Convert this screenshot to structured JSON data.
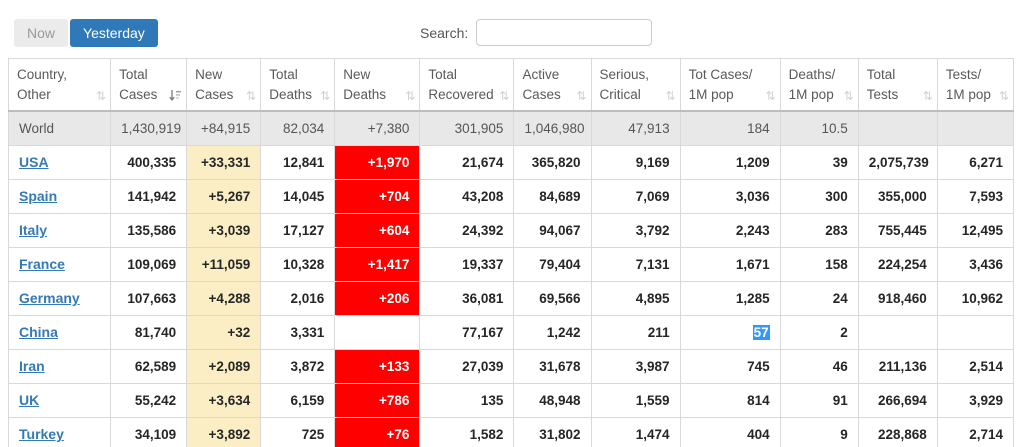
{
  "toolbar": {
    "now_label": "Now",
    "yesterday_label": "Yesterday",
    "search_label": "Search:",
    "search_value": ""
  },
  "colors": {
    "accent_blue": "#2f79b9",
    "link_blue": "#337ab7",
    "new_cases_yellow": "#fbeec5",
    "new_deaths_red": "#ff0000",
    "selection_blue": "#3297fd",
    "world_row_gray": "#e8e8e8"
  },
  "table": {
    "columns": [
      {
        "key": "country",
        "lines": [
          "Country,",
          "Other"
        ],
        "sort": "both"
      },
      {
        "key": "total_cases",
        "lines": [
          "Total",
          "Cases"
        ],
        "sort": "desc"
      },
      {
        "key": "new_cases",
        "lines": [
          "New",
          "Cases"
        ],
        "sort": "both"
      },
      {
        "key": "total_deaths",
        "lines": [
          "Total",
          "Deaths"
        ],
        "sort": "both"
      },
      {
        "key": "new_deaths",
        "lines": [
          "New",
          "Deaths"
        ],
        "sort": "both"
      },
      {
        "key": "total_recovered",
        "lines": [
          "Total",
          "Recovered"
        ],
        "sort": "both"
      },
      {
        "key": "active_cases",
        "lines": [
          "Active",
          "Cases"
        ],
        "sort": "both"
      },
      {
        "key": "serious_critical",
        "lines": [
          "Serious,",
          "Critical"
        ],
        "sort": "both"
      },
      {
        "key": "tot_cases_1m",
        "lines": [
          "Tot Cases/",
          "1M pop"
        ],
        "sort": "both"
      },
      {
        "key": "deaths_1m",
        "lines": [
          "Deaths/",
          "1M pop"
        ],
        "sort": "both"
      },
      {
        "key": "total_tests",
        "lines": [
          "Total",
          "Tests"
        ],
        "sort": "both"
      },
      {
        "key": "tests_1m",
        "lines": [
          "Tests/",
          "1M pop"
        ],
        "sort": "both"
      }
    ],
    "rows": [
      {
        "name": "World",
        "is_world": true,
        "cells": {
          "total_cases": "1,430,919",
          "new_cases": "+84,915",
          "total_deaths": "82,034",
          "new_deaths": "+7,380",
          "total_recovered": "301,905",
          "active_cases": "1,046,980",
          "serious_critical": "47,913",
          "tot_cases_1m": "184",
          "deaths_1m": "10.5",
          "total_tests": "",
          "tests_1m": ""
        }
      },
      {
        "name": "USA",
        "cells": {
          "total_cases": "400,335",
          "new_cases": "+33,331",
          "total_deaths": "12,841",
          "new_deaths": "+1,970",
          "total_recovered": "21,674",
          "active_cases": "365,820",
          "serious_critical": "9,169",
          "tot_cases_1m": "1,209",
          "deaths_1m": "39",
          "total_tests": "2,075,739",
          "tests_1m": "6,271"
        }
      },
      {
        "name": "Spain",
        "cells": {
          "total_cases": "141,942",
          "new_cases": "+5,267",
          "total_deaths": "14,045",
          "new_deaths": "+704",
          "total_recovered": "43,208",
          "active_cases": "84,689",
          "serious_critical": "7,069",
          "tot_cases_1m": "3,036",
          "deaths_1m": "300",
          "total_tests": "355,000",
          "tests_1m": "7,593"
        }
      },
      {
        "name": "Italy",
        "cells": {
          "total_cases": "135,586",
          "new_cases": "+3,039",
          "total_deaths": "17,127",
          "new_deaths": "+604",
          "total_recovered": "24,392",
          "active_cases": "94,067",
          "serious_critical": "3,792",
          "tot_cases_1m": "2,243",
          "deaths_1m": "283",
          "total_tests": "755,445",
          "tests_1m": "12,495"
        }
      },
      {
        "name": "France",
        "cells": {
          "total_cases": "109,069",
          "new_cases": "+11,059",
          "total_deaths": "10,328",
          "new_deaths": "+1,417",
          "total_recovered": "19,337",
          "active_cases": "79,404",
          "serious_critical": "7,131",
          "tot_cases_1m": "1,671",
          "deaths_1m": "158",
          "total_tests": "224,254",
          "tests_1m": "3,436"
        }
      },
      {
        "name": "Germany",
        "cells": {
          "total_cases": "107,663",
          "new_cases": "+4,288",
          "total_deaths": "2,016",
          "new_deaths": "+206",
          "total_recovered": "36,081",
          "active_cases": "69,566",
          "serious_critical": "4,895",
          "tot_cases_1m": "1,285",
          "deaths_1m": "24",
          "total_tests": "918,460",
          "tests_1m": "10,962"
        }
      },
      {
        "name": "China",
        "selected_cell": "tot_cases_1m",
        "cells": {
          "total_cases": "81,740",
          "new_cases": "+32",
          "total_deaths": "3,331",
          "new_deaths": "",
          "total_recovered": "77,167",
          "active_cases": "1,242",
          "serious_critical": "211",
          "tot_cases_1m": "57",
          "deaths_1m": "2",
          "total_tests": "",
          "tests_1m": ""
        }
      },
      {
        "name": "Iran",
        "cells": {
          "total_cases": "62,589",
          "new_cases": "+2,089",
          "total_deaths": "3,872",
          "new_deaths": "+133",
          "total_recovered": "27,039",
          "active_cases": "31,678",
          "serious_critical": "3,987",
          "tot_cases_1m": "745",
          "deaths_1m": "46",
          "total_tests": "211,136",
          "tests_1m": "2,514"
        }
      },
      {
        "name": "UK",
        "cells": {
          "total_cases": "55,242",
          "new_cases": "+3,634",
          "total_deaths": "6,159",
          "new_deaths": "+786",
          "total_recovered": "135",
          "active_cases": "48,948",
          "serious_critical": "1,559",
          "tot_cases_1m": "814",
          "deaths_1m": "91",
          "total_tests": "266,694",
          "tests_1m": "3,929"
        }
      },
      {
        "name": "Turkey",
        "cells": {
          "total_cases": "34,109",
          "new_cases": "+3,892",
          "total_deaths": "725",
          "new_deaths": "+76",
          "total_recovered": "1,582",
          "active_cases": "31,802",
          "serious_critical": "1,474",
          "tot_cases_1m": "404",
          "deaths_1m": "9",
          "total_tests": "228,868",
          "tests_1m": "2,714"
        }
      }
    ]
  }
}
